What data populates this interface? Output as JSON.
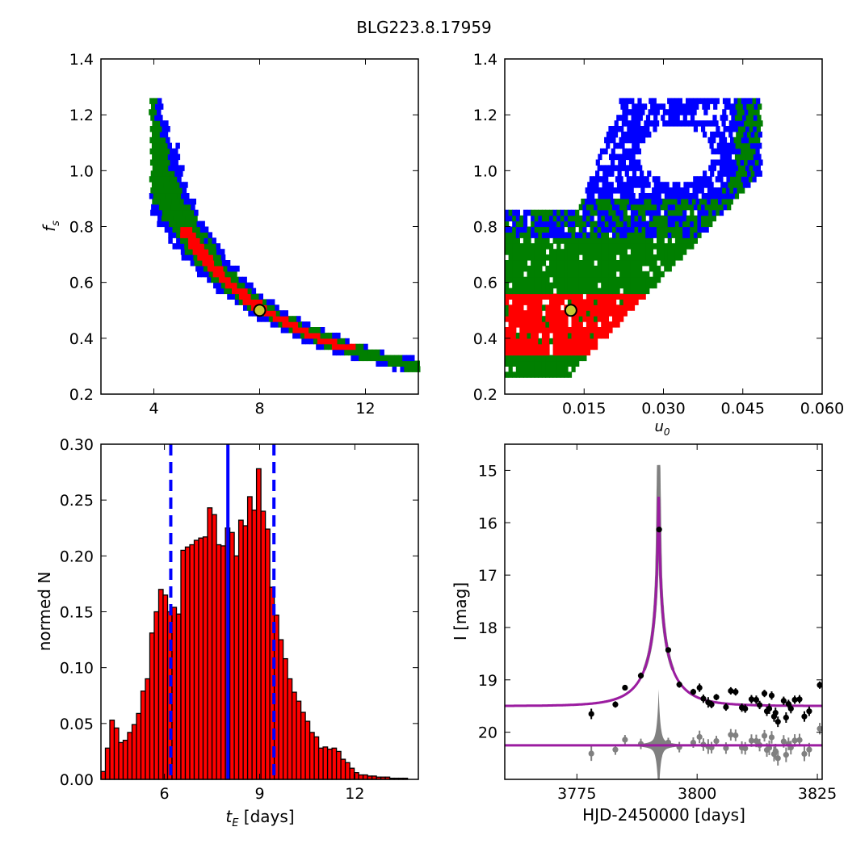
{
  "figure": {
    "title": "BLG223.8.17959"
  },
  "colors": {
    "blue": "#0000ff",
    "green": "#007f00",
    "red": "#ff0000",
    "magenta": "#9b1ca0",
    "gray": "#808080",
    "marker_face": "#c8c832"
  },
  "chart_data": [
    {
      "id": "fs_vs_tE",
      "type": "heatmap",
      "xlabel": "",
      "ylabel": "f_s",
      "xlim": [
        2,
        14
      ],
      "ylim": [
        0.2,
        1.4
      ],
      "xticks": [
        "4",
        "8",
        "12"
      ],
      "yticks": [
        "0.2",
        "0.4",
        "0.6",
        "0.8",
        "1.0",
        "1.2",
        "1.4"
      ],
      "curve": {
        "description": "fs ~ 4.0 / tE band",
        "tE_range": [
          4.0,
          14.0
        ]
      },
      "levels": [
        "blue",
        "green",
        "red"
      ],
      "best_fit": {
        "tE": 8.0,
        "fs": 0.5
      }
    },
    {
      "id": "fs_vs_u0",
      "type": "heatmap",
      "xlabel": "u_0",
      "ylabel": "",
      "xlim": [
        0.0,
        0.06
      ],
      "ylim": [
        0.2,
        1.4
      ],
      "xticks": [
        "0.015",
        "0.030",
        "0.045",
        "0.060"
      ],
      "yticks": [
        "0.2",
        "0.4",
        "0.6",
        "0.8",
        "1.0",
        "1.2",
        "1.4"
      ],
      "levels": [
        "blue",
        "green",
        "red"
      ],
      "best_fit": {
        "u0": 0.0125,
        "fs": 0.5
      }
    },
    {
      "id": "tE_histogram",
      "type": "bar",
      "xlabel": "t_E [days]",
      "ylabel": "normed N",
      "xlim": [
        4.0,
        14.0
      ],
      "ylim": [
        0.0,
        0.3
      ],
      "xticks": [
        "6",
        "9",
        "12"
      ],
      "yticks": [
        "0.00",
        "0.05",
        "0.10",
        "0.15",
        "0.20",
        "0.25",
        "0.30"
      ],
      "bin_start": 4.0,
      "bin_width": 0.2,
      "values": [
        0.007,
        0.028,
        0.053,
        0.046,
        0.033,
        0.035,
        0.042,
        0.049,
        0.059,
        0.079,
        0.09,
        0.131,
        0.15,
        0.17,
        0.165,
        0.15,
        0.154,
        0.148,
        0.205,
        0.208,
        0.21,
        0.214,
        0.216,
        0.217,
        0.243,
        0.237,
        0.21,
        0.209,
        0.225,
        0.221,
        0.2,
        0.232,
        0.227,
        0.253,
        0.241,
        0.278,
        0.24,
        0.224,
        0.172,
        0.147,
        0.125,
        0.108,
        0.09,
        0.078,
        0.07,
        0.06,
        0.052,
        0.042,
        0.038,
        0.028,
        0.029,
        0.027,
        0.028,
        0.025,
        0.018,
        0.015,
        0.01,
        0.006,
        0.004,
        0.004,
        0.003,
        0.003,
        0.002,
        0.002,
        0.002,
        0.001,
        0.001,
        0.001,
        0.001,
        0.0,
        0.0,
        0.0
      ],
      "median_line": 8.0,
      "interval_lines": [
        6.2,
        9.45
      ]
    },
    {
      "id": "lightcurve",
      "type": "scatter",
      "xlabel": "HJD-2450000 [days]",
      "ylabel": "I [mag]",
      "xlim": [
        3760,
        3826
      ],
      "ylim": [
        20.9,
        14.5
      ],
      "xticks": [
        "3775",
        "3800",
        "3825"
      ],
      "yticks": [
        "15",
        "16",
        "17",
        "18",
        "19",
        "20"
      ],
      "model": {
        "t0": 3792.0,
        "baseline": 19.5,
        "peak": 15.5,
        "tE": 8.0,
        "u0": 0.0125
      },
      "residual_baseline": 20.25,
      "points": [
        {
          "t": 3778.0,
          "mag": 19.65,
          "err": 0.1
        },
        {
          "t": 3783.0,
          "mag": 19.47,
          "err": 0.06
        },
        {
          "t": 3785.0,
          "mag": 19.15,
          "err": 0.05
        },
        {
          "t": 3788.3,
          "mag": 18.92,
          "err": 0.06
        },
        {
          "t": 3792.1,
          "mag": 16.13,
          "err": 0.05
        },
        {
          "t": 3794.0,
          "mag": 18.43,
          "err": 0.05
        },
        {
          "t": 3796.3,
          "mag": 19.09,
          "err": 0.06
        },
        {
          "t": 3799.2,
          "mag": 19.23,
          "err": 0.06
        },
        {
          "t": 3800.5,
          "mag": 19.15,
          "err": 0.08
        },
        {
          "t": 3801.3,
          "mag": 19.36,
          "err": 0.08
        },
        {
          "t": 3802.3,
          "mag": 19.43,
          "err": 0.1
        },
        {
          "t": 3803.0,
          "mag": 19.47,
          "err": 0.07
        },
        {
          "t": 3804.0,
          "mag": 19.33,
          "err": 0.06
        },
        {
          "t": 3806.0,
          "mag": 19.52,
          "err": 0.07
        },
        {
          "t": 3807.0,
          "mag": 19.21,
          "err": 0.07
        },
        {
          "t": 3808.0,
          "mag": 19.23,
          "err": 0.07
        },
        {
          "t": 3809.3,
          "mag": 19.53,
          "err": 0.08
        },
        {
          "t": 3810.0,
          "mag": 19.55,
          "err": 0.08
        },
        {
          "t": 3811.3,
          "mag": 19.37,
          "err": 0.08
        },
        {
          "t": 3812.3,
          "mag": 19.38,
          "err": 0.08
        },
        {
          "t": 3813.0,
          "mag": 19.48,
          "err": 0.08
        },
        {
          "t": 3814.0,
          "mag": 19.26,
          "err": 0.07
        },
        {
          "t": 3814.5,
          "mag": 19.6,
          "err": 0.09
        },
        {
          "t": 3815.0,
          "mag": 19.55,
          "err": 0.1
        },
        {
          "t": 3815.5,
          "mag": 19.3,
          "err": 0.08
        },
        {
          "t": 3816.0,
          "mag": 19.7,
          "err": 0.1
        },
        {
          "t": 3816.3,
          "mag": 19.63,
          "err": 0.1
        },
        {
          "t": 3816.8,
          "mag": 19.8,
          "err": 0.1
        },
        {
          "t": 3818.0,
          "mag": 19.4,
          "err": 0.08
        },
        {
          "t": 3818.5,
          "mag": 19.72,
          "err": 0.1
        },
        {
          "t": 3819.0,
          "mag": 19.46,
          "err": 0.08
        },
        {
          "t": 3819.5,
          "mag": 19.55,
          "err": 0.09
        },
        {
          "t": 3820.3,
          "mag": 19.38,
          "err": 0.08
        },
        {
          "t": 3821.3,
          "mag": 19.37,
          "err": 0.08
        },
        {
          "t": 3822.3,
          "mag": 19.7,
          "err": 0.1
        },
        {
          "t": 3823.3,
          "mag": 19.6,
          "err": 0.09
        },
        {
          "t": 3825.5,
          "mag": 19.1,
          "err": 0.07
        }
      ]
    }
  ]
}
